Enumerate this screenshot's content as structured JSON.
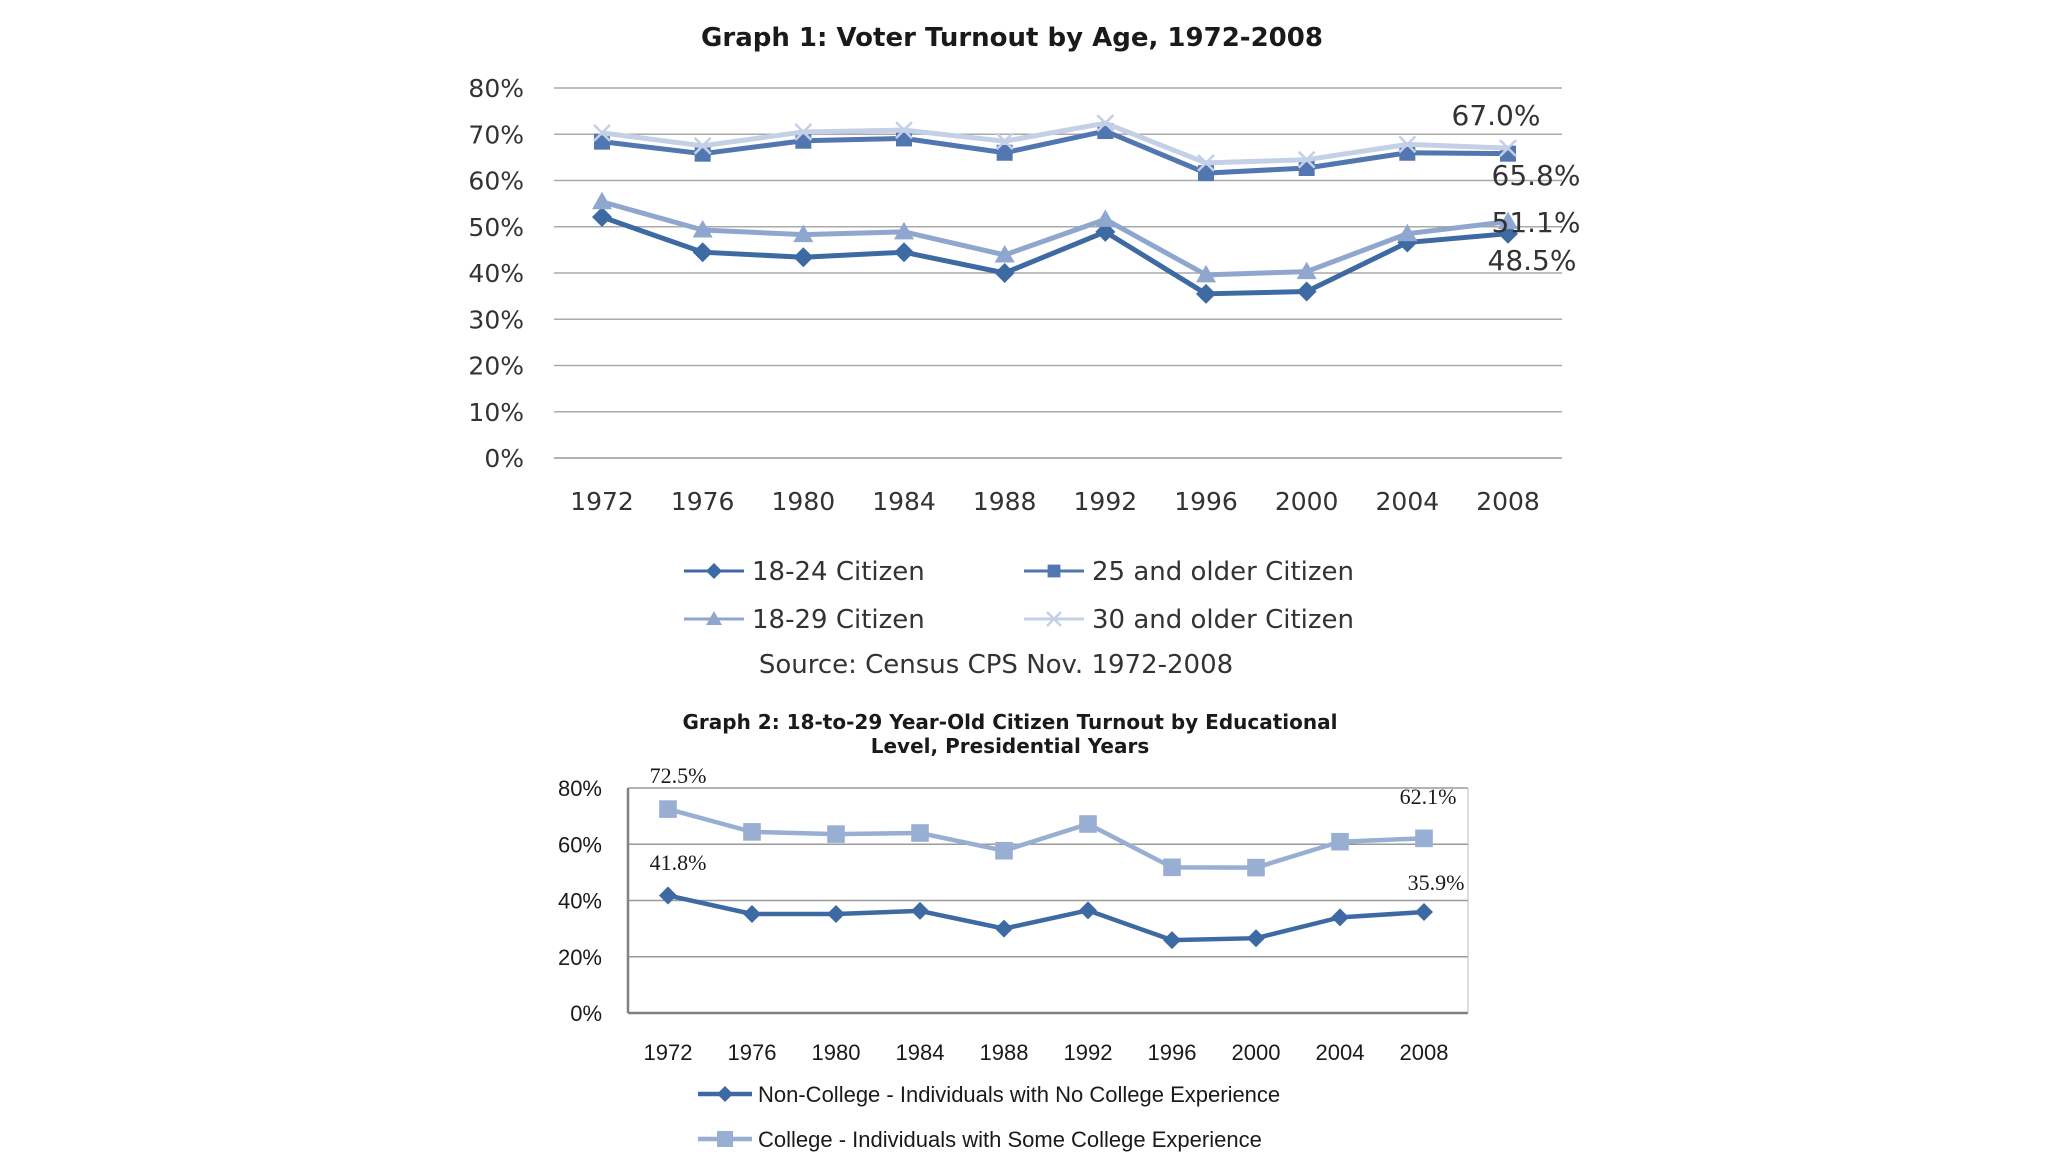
{
  "chart_data": [
    {
      "type": "line",
      "title": "Graph 1: Voter Turnout by Age, 1972-2008",
      "categories": [
        "1972",
        "1976",
        "1980",
        "1984",
        "1988",
        "1992",
        "1996",
        "2000",
        "2004",
        "2008"
      ],
      "y_ticks": [
        "0%",
        "10%",
        "20%",
        "30%",
        "40%",
        "50%",
        "60%",
        "70%",
        "80%"
      ],
      "ylim": [
        0,
        80
      ],
      "grid": true,
      "legend_position": "bottom",
      "series": [
        {
          "name": "18-24 Citizen",
          "marker": "diamond",
          "color": "#3e6aa3",
          "values": [
            52.1,
            44.5,
            43.4,
            44.5,
            40.0,
            48.9,
            35.5,
            36.0,
            46.6,
            48.5
          ]
        },
        {
          "name": "25 and older Citizen",
          "marker": "square",
          "color": "#5276b0",
          "values": [
            68.4,
            65.8,
            68.6,
            69.1,
            66.0,
            70.7,
            61.6,
            62.7,
            66.0,
            65.8
          ]
        },
        {
          "name": "18-29 Citizen",
          "marker": "triangle",
          "color": "#8fa6ce",
          "values": [
            55.4,
            49.3,
            48.3,
            48.9,
            43.9,
            51.6,
            39.6,
            40.3,
            48.5,
            51.1
          ]
        },
        {
          "name": "30 and older Citizen",
          "marker": "x",
          "color": "#c3d0e6",
          "values": [
            70.3,
            67.5,
            70.5,
            70.9,
            68.5,
            72.4,
            63.8,
            64.5,
            67.8,
            67.0
          ]
        }
      ],
      "data_labels": [
        {
          "series": 3,
          "index": 9,
          "text": "67.0%"
        },
        {
          "series": 1,
          "index": 9,
          "text": "65.8%"
        },
        {
          "series": 2,
          "index": 9,
          "text": "51.1%"
        },
        {
          "series": 0,
          "index": 9,
          "text": "48.5%"
        }
      ],
      "source": "Source: Census CPS Nov. 1972-2008"
    },
    {
      "type": "line",
      "title_lines": [
        "Graph 2: 18-to-29 Year-Old  Citizen Turnout by Educational",
        "Level, Presidential Years"
      ],
      "categories": [
        "1972",
        "1976",
        "1980",
        "1984",
        "1988",
        "1992",
        "1996",
        "2000",
        "2004",
        "2008"
      ],
      "y_ticks": [
        "0%",
        "20%",
        "40%",
        "60%",
        "80%"
      ],
      "ylim": [
        0,
        80
      ],
      "grid": true,
      "legend_position": "bottom",
      "series": [
        {
          "name": "Non-College - Individuals with No College Experience",
          "marker": "diamond",
          "color": "#3e6aa3",
          "values": [
            41.8,
            35.2,
            35.2,
            36.3,
            30.0,
            36.5,
            25.9,
            26.6,
            34.0,
            35.9
          ]
        },
        {
          "name": "College - Individuals with Some College Experience",
          "marker": "square",
          "color": "#98aed3",
          "values": [
            72.5,
            64.4,
            63.6,
            64.0,
            57.7,
            67.2,
            51.8,
            51.7,
            60.9,
            62.1
          ]
        }
      ],
      "data_labels": [
        {
          "series": 1,
          "index": 0,
          "text": "72.5%"
        },
        {
          "series": 1,
          "index": 9,
          "text": "62.1%"
        },
        {
          "series": 0,
          "index": 0,
          "text": "41.8%"
        },
        {
          "series": 0,
          "index": 9,
          "text": "35.9%"
        }
      ]
    }
  ]
}
